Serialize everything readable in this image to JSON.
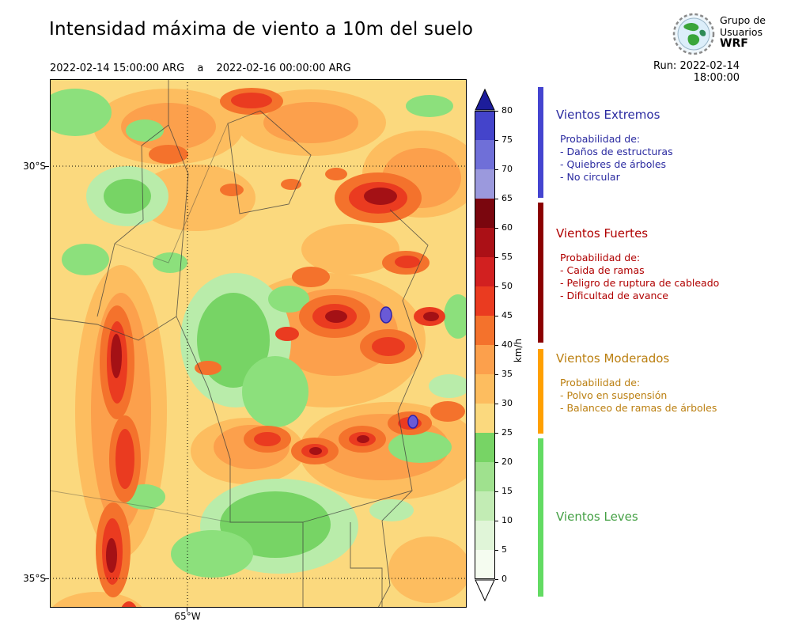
{
  "header": {
    "title": "Intensidad máxima de viento a 10m del suelo",
    "period": {
      "start": "2022-02-14 15:00:00 ARG",
      "separator": "a",
      "end": "2022-02-16 00:00:00 ARG"
    },
    "run_label": "Run: 2022-02-14 18:00:00",
    "logo": {
      "line1": "Grupo de",
      "line2": "Usuarios",
      "line3": "WRF"
    }
  },
  "map": {
    "lat_labels": [
      "30°S",
      "35°S"
    ],
    "lon_label": "65°W"
  },
  "colorbar": {
    "unit": "km/h",
    "tick_values": [
      0,
      5,
      10,
      15,
      20,
      25,
      30,
      35,
      40,
      45,
      50,
      55,
      60,
      65,
      70,
      75,
      80
    ],
    "segment_colors_bottom_to_top": [
      "#f5fcf0",
      "#e0f5d8",
      "#c2ecb4",
      "#9fe18e",
      "#77d465",
      "#fbd97e",
      "#fdbd5f",
      "#fca04c",
      "#f4722c",
      "#ea3b20",
      "#d22020",
      "#ab1016",
      "#7a060e",
      "#9b99dd",
      "#6f6fd8",
      "#4444cb"
    ],
    "over_color": "#1d1d9b",
    "under_color": "#ffffff"
  },
  "legend": {
    "sections": [
      {
        "id": "extremos",
        "title": "Vientos Extremos",
        "text_color": "#2a2aa0",
        "bar_color": "#4444d0",
        "lines": [
          "Probabilidad de:",
          "- Daños de estructuras",
          "- Quiebres de árboles",
          "- No circular"
        ]
      },
      {
        "id": "fuertes",
        "title": "Vientos Fuertes",
        "text_color": "#b00000",
        "bar_color": "#8b0000",
        "lines": [
          "Probabilidad de:",
          "- Caida de ramas",
          "- Peligro de ruptura de cableado",
          "- Dificultad de avance"
        ]
      },
      {
        "id": "moderados",
        "title": "Vientos Moderados",
        "text_color": "#bb7f10",
        "bar_color": "#ffa000",
        "lines": [
          "Probabilidad de:",
          "- Polvo en suspensión",
          "- Balanceo de ramas de árboles"
        ]
      },
      {
        "id": "leves",
        "title": "Vientos Leves",
        "text_color": "#44a044",
        "bar_color": "#63db63",
        "lines": []
      }
    ]
  }
}
